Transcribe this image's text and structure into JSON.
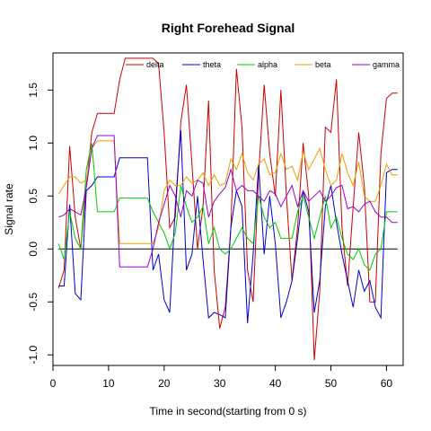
{
  "chart_data": {
    "type": "line",
    "title": "Right Forehead Signal",
    "xlabel": "Time in second(starting from 0 s)",
    "ylabel": "Signal rate",
    "xlim": [
      0,
      63
    ],
    "ylim": [
      -1.1,
      1.85
    ],
    "xticks": [
      0,
      10,
      20,
      30,
      40,
      50,
      60
    ],
    "yticks": [
      -1.0,
      -0.5,
      0.0,
      0.5,
      1.0,
      1.5
    ],
    "ytick_labels": [
      "-1.0",
      "-0.5",
      "0.0",
      "0.5",
      "1.0",
      "1.5"
    ],
    "reference_line": 0,
    "grid": false,
    "legend_position": "top",
    "x": [
      1,
      2,
      3,
      4,
      5,
      6,
      7,
      8,
      9,
      10,
      11,
      12,
      13,
      14,
      15,
      16,
      17,
      18,
      19,
      20,
      21,
      22,
      23,
      24,
      25,
      26,
      27,
      28,
      29,
      30,
      31,
      32,
      33,
      34,
      35,
      36,
      37,
      38,
      39,
      40,
      41,
      42,
      43,
      44,
      45,
      46,
      47,
      48,
      49,
      50,
      51,
      52,
      53,
      54,
      55,
      56,
      57,
      58,
      59,
      60,
      61,
      62
    ],
    "series": [
      {
        "name": "delta",
        "color": "#cc0000",
        "values": [
          -0.37,
          -0.2,
          0.97,
          0.3,
          0.0,
          0.6,
          1.1,
          1.28,
          1.28,
          1.28,
          1.28,
          1.6,
          1.8,
          1.8,
          1.8,
          1.8,
          1.8,
          1.8,
          1.75,
          1.1,
          0.2,
          0.3,
          1.2,
          1.55,
          0.8,
          0.0,
          0.4,
          1.4,
          -0.2,
          -0.75,
          -0.55,
          0.2,
          1.7,
          1.15,
          -0.2,
          -0.5,
          0.7,
          1.55,
          0.9,
          0.5,
          1.5,
          0.5,
          -0.3,
          0.2,
          1.0,
          0.5,
          -1.05,
          -0.4,
          1.15,
          1.1,
          1.6,
          0.2,
          -0.35,
          0.4,
          1.1,
          0.6,
          -0.5,
          -0.5,
          0.9,
          1.42,
          1.47,
          1.47
        ]
      },
      {
        "name": "theta",
        "color": "#0000cc",
        "values": [
          -0.35,
          -0.35,
          0.42,
          -0.42,
          -0.48,
          0.55,
          0.6,
          0.68,
          0.68,
          0.68,
          0.68,
          0.86,
          0.86,
          0.86,
          0.86,
          0.86,
          0.86,
          -0.2,
          -0.05,
          -0.48,
          -0.6,
          0.4,
          1.12,
          -0.2,
          -0.05,
          0.5,
          -0.1,
          -0.65,
          -0.6,
          -0.62,
          -0.65,
          0.2,
          0.55,
          0.4,
          -0.7,
          -0.05,
          0.8,
          -0.05,
          0.5,
          0.05,
          -0.65,
          -0.5,
          -0.3,
          0.1,
          0.55,
          0.35,
          -0.6,
          -0.3,
          0.4,
          0.6,
          0.25,
          -0.05,
          -0.3,
          -0.55,
          -0.2,
          -0.4,
          -0.3,
          -0.55,
          -0.65,
          0.72,
          0.75,
          0.75
        ]
      },
      {
        "name": "alpha",
        "color": "#00cc00",
        "values": [
          0.05,
          -0.1,
          0.35,
          0.1,
          0.0,
          0.75,
          1.0,
          0.35,
          0.35,
          0.35,
          0.35,
          0.48,
          0.48,
          0.48,
          0.48,
          0.48,
          0.48,
          0.35,
          0.25,
          0.15,
          0.0,
          0.15,
          0.6,
          0.4,
          0.25,
          0.3,
          0.4,
          0.05,
          0.2,
          0.0,
          -0.05,
          0.0,
          0.1,
          0.2,
          0.1,
          0.05,
          0.5,
          0.3,
          0.2,
          0.25,
          0.1,
          0.1,
          0.1,
          0.35,
          0.5,
          0.3,
          0.1,
          0.3,
          0.5,
          0.2,
          0.3,
          0.1,
          -0.05,
          -0.1,
          0.0,
          -0.15,
          -0.2,
          -0.05,
          0.0,
          0.35,
          0.35,
          0.35
        ]
      },
      {
        "name": "beta",
        "color": "#e8a000",
        "values": [
          0.52,
          0.6,
          0.68,
          0.68,
          0.62,
          0.65,
          0.95,
          1.02,
          1.02,
          1.02,
          1.02,
          0.05,
          0.05,
          0.05,
          0.05,
          0.05,
          0.05,
          0.05,
          0.2,
          0.55,
          0.65,
          0.6,
          0.6,
          0.68,
          0.62,
          0.65,
          0.72,
          0.6,
          0.7,
          0.6,
          0.62,
          0.85,
          0.75,
          0.9,
          0.72,
          0.65,
          0.8,
          0.85,
          0.7,
          0.72,
          0.9,
          0.75,
          0.78,
          0.65,
          0.92,
          0.75,
          0.85,
          0.95,
          0.75,
          0.6,
          0.65,
          0.9,
          0.72,
          0.6,
          0.82,
          0.5,
          0.45,
          0.45,
          0.6,
          0.8,
          0.7,
          0.7
        ]
      },
      {
        "name": "gamma",
        "color": "#9900cc",
        "values": [
          0.3,
          0.32,
          0.38,
          0.35,
          0.32,
          0.58,
          0.95,
          1.07,
          1.07,
          1.07,
          1.07,
          -0.17,
          -0.17,
          -0.17,
          -0.17,
          -0.17,
          -0.17,
          0.0,
          0.25,
          0.42,
          0.6,
          0.5,
          0.3,
          0.55,
          0.5,
          0.65,
          0.62,
          0.3,
          0.45,
          0.52,
          0.58,
          0.75,
          0.55,
          0.6,
          0.55,
          0.55,
          0.5,
          0.45,
          0.55,
          0.52,
          0.4,
          0.5,
          0.6,
          0.4,
          0.55,
          0.45,
          0.5,
          0.55,
          0.45,
          0.5,
          0.58,
          0.6,
          0.38,
          0.4,
          0.35,
          0.42,
          0.45,
          0.35,
          0.3,
          0.3,
          0.25,
          0.25
        ]
      }
    ]
  }
}
